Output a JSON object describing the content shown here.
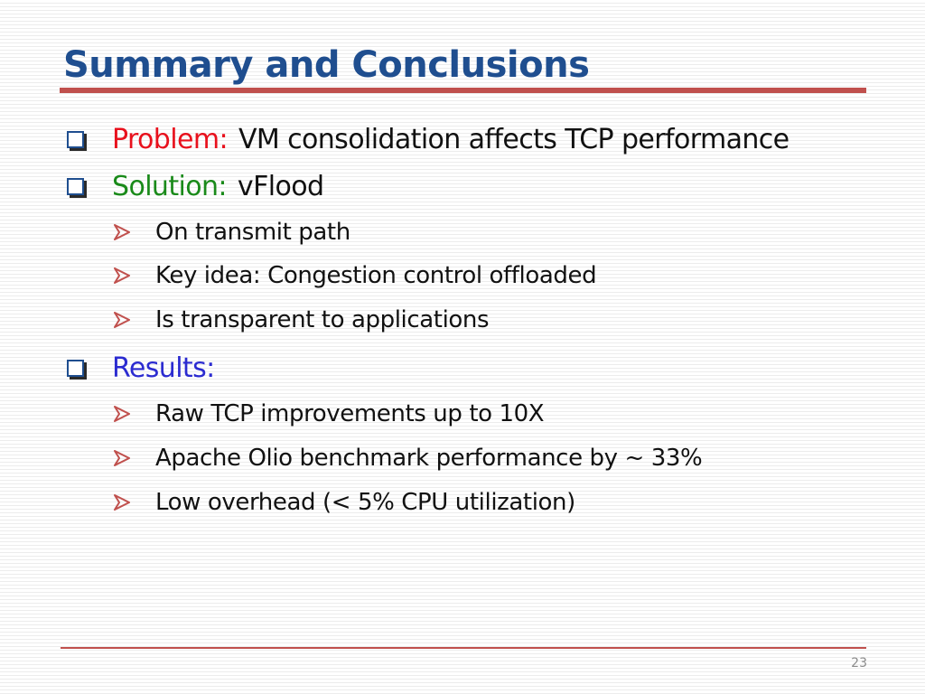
{
  "slide": {
    "title": "Summary and Conclusions",
    "page_number": "23",
    "colors": {
      "title": "#1f4e8f",
      "rule": "#c0504d",
      "problem_label": "#e8111d",
      "solution_label": "#1a8a1a",
      "results_label": "#2b2bd0",
      "arrow": "#c0504d"
    }
  },
  "bullets": [
    {
      "label": "Problem:",
      "text": "VM consolidation affects TCP performance"
    },
    {
      "label": "Solution:",
      "text": "vFlood"
    },
    {
      "label": "Results:",
      "text": ""
    }
  ],
  "sub_bullets": {
    "solution": [
      "On transmit path",
      "Key idea: Congestion control offloaded",
      "Is transparent to applications"
    ],
    "results": [
      "Raw TCP improvements up to 10X",
      "Apache Olio benchmark performance by ~ 33%",
      "Low overhead (< 5% CPU utilization)"
    ]
  },
  "icons": {
    "level1": "checkbox-square-icon",
    "level2": "arrow-right-icon"
  }
}
